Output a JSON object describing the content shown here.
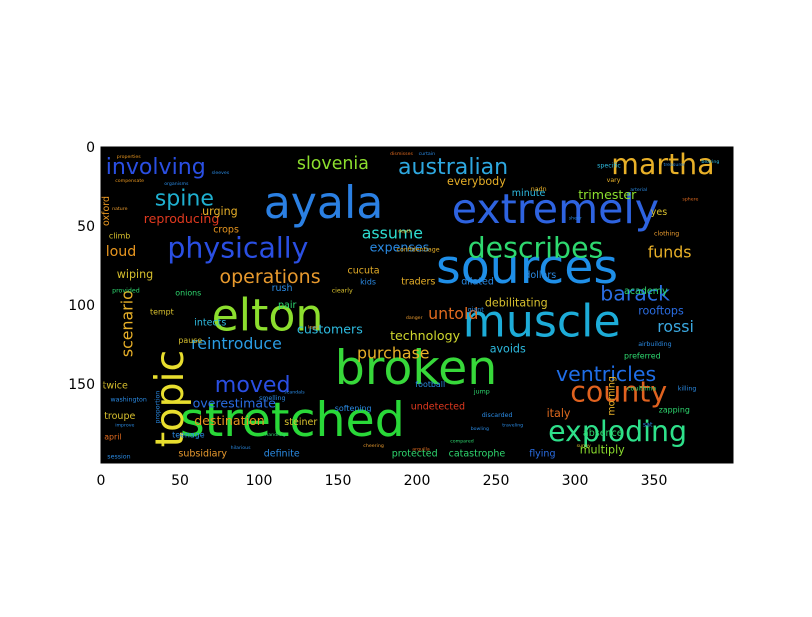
{
  "chart_data": {
    "type": "wordcloud",
    "xlim": [
      0,
      400
    ],
    "ylim": [
      200,
      0
    ],
    "xticks": [
      0,
      50,
      100,
      150,
      200,
      250,
      300,
      350
    ],
    "yticks": [
      0,
      50,
      100,
      150
    ],
    "background": "#000000",
    "words": [
      {
        "text": "sources",
        "x": 212,
        "y": 86,
        "size": 30,
        "color": "#1f8fe8",
        "rot": 0
      },
      {
        "text": "stretched",
        "x": 50,
        "y": 183,
        "size": 30,
        "color": "#29d838",
        "rot": 0
      },
      {
        "text": "broken",
        "x": 148,
        "y": 150,
        "size": 30,
        "color": "#37d83a",
        "rot": 0
      },
      {
        "text": "ayala",
        "x": 103,
        "y": 45,
        "size": 28,
        "color": "#2b80e3",
        "rot": 0
      },
      {
        "text": "muscle",
        "x": 229,
        "y": 120,
        "size": 28,
        "color": "#1dacd8",
        "rot": 0
      },
      {
        "text": "extremely",
        "x": 222,
        "y": 48,
        "size": 26,
        "color": "#2e63e0",
        "rot": 0
      },
      {
        "text": "elton",
        "x": 70,
        "y": 116,
        "size": 28,
        "color": "#8cde2e",
        "rot": 0
      },
      {
        "text": "topic",
        "x": 52,
        "y": 190,
        "size": 25,
        "color": "#e8de2e",
        "rot": -90
      },
      {
        "text": "physically",
        "x": 42,
        "y": 70,
        "size": 18,
        "color": "#2a4fe3",
        "rot": 0
      },
      {
        "text": "exploding",
        "x": 283,
        "y": 186,
        "size": 18,
        "color": "#2ee08a",
        "rot": 0
      },
      {
        "text": "describes",
        "x": 232,
        "y": 70,
        "size": 18,
        "color": "#2ed86f",
        "rot": 0
      },
      {
        "text": "county",
        "x": 297,
        "y": 161,
        "size": 18,
        "color": "#e0621f",
        "rot": 0
      },
      {
        "text": "martha",
        "x": 323,
        "y": 17,
        "size": 18,
        "color": "#e8b028",
        "rot": 0
      },
      {
        "text": "australian",
        "x": 188,
        "y": 17,
        "size": 14,
        "color": "#2ea8e0",
        "rot": 0
      },
      {
        "text": "involving",
        "x": 3,
        "y": 17,
        "size": 14,
        "color": "#2a4fe3",
        "rot": 0
      },
      {
        "text": "spine",
        "x": 34,
        "y": 37,
        "size": 14,
        "color": "#1fb0d0",
        "rot": 0
      },
      {
        "text": "slovenia",
        "x": 124,
        "y": 14,
        "size": 11,
        "color": "#8cde2e",
        "rot": 0
      },
      {
        "text": "moved",
        "x": 72,
        "y": 155,
        "size": 14,
        "color": "#2a4fe3",
        "rot": 0
      },
      {
        "text": "barack",
        "x": 316,
        "y": 97,
        "size": 13,
        "color": "#2a6de3",
        "rot": 0
      },
      {
        "text": "ventricles",
        "x": 288,
        "y": 148,
        "size": 13,
        "color": "#1f6ee8",
        "rot": 0
      },
      {
        "text": "operations",
        "x": 75,
        "y": 86,
        "size": 12,
        "color": "#e89a2e",
        "rot": 0
      },
      {
        "text": "assume",
        "x": 165,
        "y": 58,
        "size": 10,
        "color": "#2edcd0",
        "rot": 0
      },
      {
        "text": "funds",
        "x": 346,
        "y": 70,
        "size": 10,
        "color": "#e8b028",
        "rot": 0
      },
      {
        "text": "untold",
        "x": 207,
        "y": 109,
        "size": 10,
        "color": "#e06a1f",
        "rot": 0
      },
      {
        "text": "rossi",
        "x": 352,
        "y": 117,
        "size": 10,
        "color": "#3aa8e0",
        "rot": 0
      },
      {
        "text": "purchase",
        "x": 162,
        "y": 134,
        "size": 10,
        "color": "#e8b028",
        "rot": 0
      },
      {
        "text": "reintroduce",
        "x": 57,
        "y": 128,
        "size": 10,
        "color": "#2a9ce3",
        "rot": 0
      },
      {
        "text": "reproducing",
        "x": 27,
        "y": 48,
        "size": 8,
        "color": "#e0391f",
        "rot": 0
      },
      {
        "text": "trimester",
        "x": 302,
        "y": 33,
        "size": 8,
        "color": "#8cde2e",
        "rot": 0
      },
      {
        "text": "expenses",
        "x": 170,
        "y": 66,
        "size": 8,
        "color": "#2a8ae3",
        "rot": 0
      },
      {
        "text": "loud",
        "x": 3,
        "y": 69,
        "size": 9,
        "color": "#e8961f",
        "rot": 0
      },
      {
        "text": "scenario",
        "x": 20,
        "y": 133,
        "size": 10,
        "color": "#e8b028",
        "rot": -90
      },
      {
        "text": "destination",
        "x": 59,
        "y": 176,
        "size": 8,
        "color": "#e8961f",
        "rot": 0
      },
      {
        "text": "overestimate",
        "x": 58,
        "y": 165,
        "size": 8,
        "color": "#2a6de3",
        "rot": 0
      },
      {
        "text": "customers",
        "x": 124,
        "y": 118,
        "size": 8,
        "color": "#2ebbe0",
        "rot": 0
      },
      {
        "text": "technology",
        "x": 183,
        "y": 122,
        "size": 8,
        "color": "#d0d82e",
        "rot": 0
      },
      {
        "text": "debilitating",
        "x": 243,
        "y": 101,
        "size": 7,
        "color": "#d8c02e",
        "rot": 0
      },
      {
        "text": "rooftops",
        "x": 340,
        "y": 106,
        "size": 7,
        "color": "#2a6de3",
        "rot": 0
      },
      {
        "text": "academy",
        "x": 331,
        "y": 93,
        "size": 6,
        "color": "#2ed86f",
        "rot": 0
      },
      {
        "text": "avoids",
        "x": 246,
        "y": 130,
        "size": 7,
        "color": "#2ebbe0",
        "rot": 0
      },
      {
        "text": "multiply",
        "x": 303,
        "y": 194,
        "size": 7,
        "color": "#8cde2e",
        "rot": 0
      },
      {
        "text": "morning",
        "x": 325,
        "y": 170,
        "size": 6,
        "color": "#e8b028",
        "rot": -90
      },
      {
        "text": "italy",
        "x": 282,
        "y": 171,
        "size": 7,
        "color": "#e06a1f",
        "rot": 0
      },
      {
        "text": "flying",
        "x": 271,
        "y": 196,
        "size": 6,
        "color": "#2a6de3",
        "rot": 0
      },
      {
        "text": "catastrophe",
        "x": 220,
        "y": 196,
        "size": 6,
        "color": "#2ed86f",
        "rot": 0
      },
      {
        "text": "protected",
        "x": 184,
        "y": 196,
        "size": 6,
        "color": "#2ed86f",
        "rot": 0
      },
      {
        "text": "definite",
        "x": 103,
        "y": 196,
        "size": 6,
        "color": "#2a8ae3",
        "rot": 0
      },
      {
        "text": "subsidiary",
        "x": 49,
        "y": 196,
        "size": 6,
        "color": "#e89a2e",
        "rot": 0
      },
      {
        "text": "troupe",
        "x": 2,
        "y": 172,
        "size": 6,
        "color": "#d8c02e",
        "rot": 0
      },
      {
        "text": "twice",
        "x": 1,
        "y": 153,
        "size": 6,
        "color": "#d8c02e",
        "rot": 0
      },
      {
        "text": "april",
        "x": 2,
        "y": 185,
        "size": 5,
        "color": "#e06a1f",
        "rot": 0
      },
      {
        "text": "oxford",
        "x": 5,
        "y": 50,
        "size": 6,
        "color": "#e8961f",
        "rot": -90
      },
      {
        "text": "wiping",
        "x": 10,
        "y": 83,
        "size": 7,
        "color": "#d8c02e",
        "rot": 0
      },
      {
        "text": "urging",
        "x": 64,
        "y": 43,
        "size": 7,
        "color": "#e8b028",
        "rot": 0
      },
      {
        "text": "crops",
        "x": 71,
        "y": 54,
        "size": 6,
        "color": "#e8961f",
        "rot": 0
      },
      {
        "text": "climb",
        "x": 5,
        "y": 58,
        "size": 5,
        "color": "#d8c02e",
        "rot": 0
      },
      {
        "text": "pair",
        "x": 112,
        "y": 102,
        "size": 6,
        "color": "#2ed86f",
        "rot": 0
      },
      {
        "text": "rush",
        "x": 108,
        "y": 91,
        "size": 6,
        "color": "#2a8ae3",
        "rot": 0
      },
      {
        "text": "intects",
        "x": 59,
        "y": 113,
        "size": 6,
        "color": "#2ebbe0",
        "rot": 0
      },
      {
        "text": "onions",
        "x": 47,
        "y": 94,
        "size": 5,
        "color": "#2ed86f",
        "rot": 0
      },
      {
        "text": "cucuta",
        "x": 156,
        "y": 80,
        "size": 6,
        "color": "#e8b028",
        "rot": 0
      },
      {
        "text": "dilated",
        "x": 228,
        "y": 87,
        "size": 6,
        "color": "#2a8ae3",
        "rot": 0
      },
      {
        "text": "traders",
        "x": 190,
        "y": 87,
        "size": 6,
        "color": "#e8b028",
        "rot": 0
      },
      {
        "text": "dollars",
        "x": 268,
        "y": 83,
        "size": 6,
        "color": "#2a8ae3",
        "rot": 0
      },
      {
        "text": "kids",
        "x": 164,
        "y": 87,
        "size": 5,
        "color": "#2a8ae3",
        "rot": 0
      },
      {
        "text": "everybody",
        "x": 219,
        "y": 24,
        "size": 7,
        "color": "#e8b028",
        "rot": 0
      },
      {
        "text": "minute",
        "x": 260,
        "y": 31,
        "size": 6,
        "color": "#2ebbe0",
        "rot": 0
      },
      {
        "text": "yes",
        "x": 348,
        "y": 43,
        "size": 6,
        "color": "#d8c02e",
        "rot": 0
      },
      {
        "text": "steiner",
        "x": 116,
        "y": 176,
        "size": 6,
        "color": "#d8c02e",
        "rot": 0
      },
      {
        "text": "teenage",
        "x": 45,
        "y": 184,
        "size": 5,
        "color": "#2a8ae3",
        "rot": 0
      },
      {
        "text": "undetected",
        "x": 196,
        "y": 166,
        "size": 6,
        "color": "#e0391f",
        "rot": 0
      },
      {
        "text": "absence",
        "x": 305,
        "y": 183,
        "size": 6,
        "color": "#2ed86f",
        "rot": 0
      },
      {
        "text": "zapping",
        "x": 353,
        "y": 168,
        "size": 5,
        "color": "#2ed86f",
        "rot": 0
      },
      {
        "text": "preferred",
        "x": 331,
        "y": 134,
        "size": 5,
        "color": "#2ed86f",
        "rot": 0
      },
      {
        "text": "football",
        "x": 199,
        "y": 152,
        "size": 5,
        "color": "#2a8ae3",
        "rot": 0
      },
      {
        "text": "softening",
        "x": 148,
        "y": 167,
        "size": 5,
        "color": "#2a8ae3",
        "rot": 0
      },
      {
        "text": "pause",
        "x": 49,
        "y": 124,
        "size": 5,
        "color": "#d8c02e",
        "rot": 0
      },
      {
        "text": "tempt",
        "x": 31,
        "y": 106,
        "size": 5,
        "color": "#d8c02e",
        "rot": 0
      },
      {
        "text": "clothing",
        "x": 350,
        "y": 56,
        "size": 4,
        "color": "#e89a2e",
        "rot": 0
      },
      {
        "text": "airbuilding",
        "x": 340,
        "y": 126,
        "size": 4,
        "color": "#2a8ae3",
        "rot": 0
      },
      {
        "text": "vary",
        "x": 320,
        "y": 22,
        "size": 4,
        "color": "#e8b028",
        "rot": 0
      },
      {
        "text": "provided",
        "x": 7,
        "y": 92,
        "size": 4,
        "color": "#2ed86f",
        "rot": 0
      },
      {
        "text": "jump",
        "x": 236,
        "y": 156,
        "size": 4,
        "color": "#2ed86f",
        "rot": 0
      },
      {
        "text": "ciearly",
        "x": 146,
        "y": 92,
        "size": 4,
        "color": "#d8c02e",
        "rot": 0
      },
      {
        "text": "confidentiage",
        "x": 187,
        "y": 66,
        "size": 4,
        "color": "#e8b028",
        "rot": 0
      },
      {
        "text": "specific",
        "x": 314,
        "y": 13,
        "size": 4,
        "color": "#2ebbe0",
        "rot": 0
      },
      {
        "text": "nadn",
        "x": 272,
        "y": 28,
        "size": 4,
        "color": "#e8b028",
        "rot": 0
      },
      {
        "text": "smelling",
        "x": 100,
        "y": 160,
        "size": 4,
        "color": "#2a8ae3",
        "rot": 0
      },
      {
        "text": "washington",
        "x": 6,
        "y": 161,
        "size": 4,
        "color": "#2a8ae3",
        "rot": 0
      },
      {
        "text": "session",
        "x": 4,
        "y": 197,
        "size": 4,
        "color": "#2a8ae3",
        "rot": 0
      },
      {
        "text": "proportion",
        "x": 37,
        "y": 175,
        "size": 4,
        "color": "#2a8ae3",
        "rot": -90
      },
      {
        "text": "giant",
        "x": 232,
        "y": 104,
        "size": 4,
        "color": "#2a8ae3",
        "rot": 0
      },
      {
        "text": "discarded",
        "x": 241,
        "y": 171,
        "size": 4,
        "color": "#2a8ae3",
        "rot": 0
      },
      {
        "text": "coulthino",
        "x": 333,
        "y": 154,
        "size": 4,
        "color": "#2ed86f",
        "rot": 0
      },
      {
        "text": "sat",
        "x": 343,
        "y": 177,
        "size": 4,
        "color": "#2a8ae3",
        "rot": 0
      },
      {
        "text": "killing",
        "x": 365,
        "y": 154,
        "size": 4,
        "color": "#2a8ae3",
        "rot": 0
      },
      {
        "text": "organisms",
        "x": 40,
        "y": 24,
        "size": 3,
        "color": "#2a8ae3",
        "rot": 0
      },
      {
        "text": "properties",
        "x": 10,
        "y": 7,
        "size": 3,
        "color": "#e8961f",
        "rot": 0
      },
      {
        "text": "sleeves",
        "x": 70,
        "y": 17,
        "size": 3,
        "color": "#2a8ae3",
        "rot": 0
      },
      {
        "text": "compensate",
        "x": 9,
        "y": 22,
        "size": 3,
        "color": "#e8961f",
        "rot": 0
      },
      {
        "text": "nature",
        "x": 7,
        "y": 40,
        "size": 3,
        "color": "#e89a2e",
        "rot": 0
      },
      {
        "text": "dismisses",
        "x": 183,
        "y": 5,
        "size": 3,
        "color": "#e06a1f",
        "rot": 0
      },
      {
        "text": "curtain",
        "x": 201,
        "y": 5,
        "size": 3,
        "color": "#2a8ae3",
        "rot": 0
      },
      {
        "text": "arterial",
        "x": 335,
        "y": 28,
        "size": 3,
        "color": "#2a8ae3",
        "rot": 0
      },
      {
        "text": "sunny",
        "x": 301,
        "y": 190,
        "size": 3,
        "color": "#d8c02e",
        "rot": 0
      },
      {
        "text": "improve",
        "x": 9,
        "y": 177,
        "size": 3,
        "color": "#2a8ae3",
        "rot": 0
      },
      {
        "text": "arquilla",
        "x": 197,
        "y": 192,
        "size": 3,
        "color": "#e06a1f",
        "rot": 0
      },
      {
        "text": "traveling",
        "x": 254,
        "y": 177,
        "size": 3,
        "color": "#2a8ae3",
        "rot": 0
      },
      {
        "text": "handling",
        "x": 104,
        "y": 183,
        "size": 3,
        "color": "#2ed86f",
        "rot": 0
      },
      {
        "text": "hilarious",
        "x": 82,
        "y": 191,
        "size": 3,
        "color": "#2a8ae3",
        "rot": 0
      },
      {
        "text": "compared",
        "x": 221,
        "y": 187,
        "size": 3,
        "color": "#2ed86f",
        "rot": 0
      },
      {
        "text": "bowling",
        "x": 234,
        "y": 179,
        "size": 3,
        "color": "#2a8ae3",
        "rot": 0
      },
      {
        "text": "cheering",
        "x": 166,
        "y": 190,
        "size": 3,
        "color": "#e89a2e",
        "rot": 0
      },
      {
        "text": "sheer",
        "x": 296,
        "y": 46,
        "size": 3,
        "color": "#2a8ae3",
        "rot": 0
      },
      {
        "text": "depth",
        "x": 188,
        "y": 54,
        "size": 3,
        "color": "#e8b028",
        "rot": 0
      },
      {
        "text": "scandals",
        "x": 116,
        "y": 156,
        "size": 3,
        "color": "#2a8ae3",
        "rot": 0
      },
      {
        "text": "sphere",
        "x": 368,
        "y": 34,
        "size": 3,
        "color": "#e06a1f",
        "rot": 0
      },
      {
        "text": "legal",
        "x": 131,
        "y": 115,
        "size": 3,
        "color": "#e89a2e",
        "rot": 0
      },
      {
        "text": "danger",
        "x": 193,
        "y": 109,
        "size": 3,
        "color": "#e89a2e",
        "rot": 0
      },
      {
        "text": "treasurer",
        "x": 356,
        "y": 12,
        "size": 3,
        "color": "#2a8ae3",
        "rot": 0
      },
      {
        "text": "bearing",
        "x": 380,
        "y": 10,
        "size": 3,
        "color": "#2ebbe0",
        "rot": 0
      }
    ]
  }
}
